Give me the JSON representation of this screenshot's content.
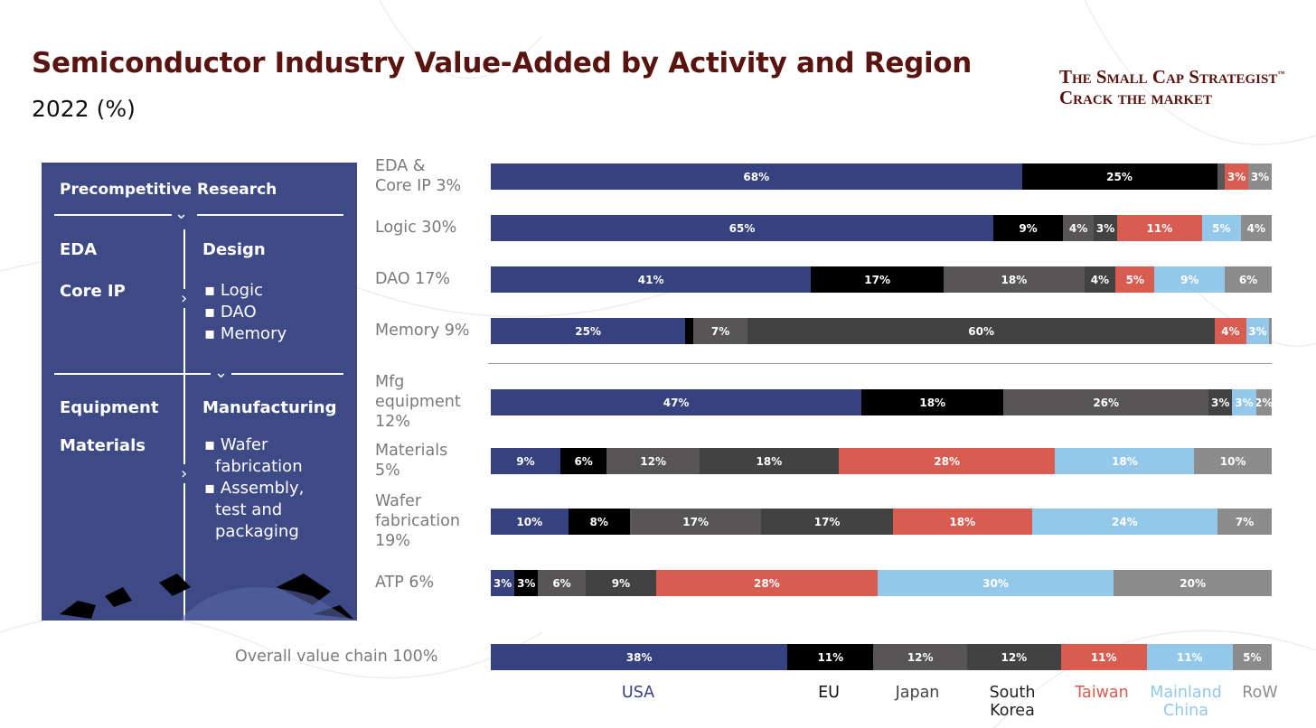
{
  "header": {
    "title": "Semiconductor Industry Value-Added by Activity and Region",
    "subtitle": "2022 (%)",
    "logo_line1": "The Small Cap Strategist",
    "logo_tm": "™",
    "logo_line2": "Crack the market"
  },
  "panel": {
    "heading": "Precompetitive Research",
    "eda": "EDA",
    "core_ip": "Core IP",
    "design": "Design",
    "design_items": [
      "▪ Logic",
      "▪ DAO",
      "▪ Memory"
    ],
    "equipment": "Equipment",
    "materials": "Materials",
    "manufacturing": "Manufacturing",
    "mfg_items": [
      "▪ Wafer",
      "fabrication",
      "▪ Assembly,",
      "test and",
      "packaging"
    ]
  },
  "colors": {
    "USA": "#36427f",
    "EU": "#000000",
    "Japan": "#575555",
    "South Korea": "#424242",
    "Taiwan": "#d95c50",
    "Mainland China": "#94c8ea",
    "RoW": "#8c8c8c"
  },
  "chart_data": {
    "type": "bar",
    "stacked": true,
    "orientation": "horizontal",
    "unit": "%",
    "title": "Semiconductor Industry Value-Added by Activity and Region",
    "subtitle": "2022 (%)",
    "series_names": [
      "USA",
      "EU",
      "Japan",
      "South Korea",
      "Taiwan",
      "Mainland China",
      "RoW"
    ],
    "legend": [
      {
        "name": "USA",
        "label": "USA"
      },
      {
        "name": "EU",
        "label": "EU"
      },
      {
        "name": "Japan",
        "label": "Japan"
      },
      {
        "name": "South Korea",
        "label": "South\nKorea"
      },
      {
        "name": "Taiwan",
        "label": "Taiwan"
      },
      {
        "name": "Mainland China",
        "label": "Mainland\nChina"
      },
      {
        "name": "RoW",
        "label": "RoW"
      }
    ],
    "legend_position": "bottom",
    "rows": [
      {
        "label": "EDA &\nCore IP 3%",
        "values": [
          68,
          25,
          1,
          0,
          3,
          0,
          3
        ],
        "labels": [
          "68%",
          "25%",
          "",
          "",
          "3%",
          "",
          "3%"
        ]
      },
      {
        "label": "Logic 30%",
        "values": [
          65,
          9,
          4,
          3,
          11,
          5,
          4
        ],
        "labels": [
          "65%",
          "9%",
          "4%",
          "3%",
          "11%",
          "5%",
          "4%"
        ]
      },
      {
        "label": "DAO 17%",
        "values": [
          41,
          17,
          18,
          4,
          5,
          9,
          6
        ],
        "labels": [
          "41%",
          "17%",
          "18%",
          "4%",
          "5%",
          "9%",
          "6%"
        ]
      },
      {
        "label": "Memory 9%",
        "values": [
          25,
          1,
          7,
          60,
          4,
          3,
          0.3
        ],
        "labels": [
          "25%",
          "",
          "7%",
          "60%",
          "4%",
          "3%",
          ""
        ]
      },
      {
        "label": "Mfg\nequipment\n12%",
        "values": [
          47,
          18,
          26,
          3,
          0,
          3,
          2
        ],
        "labels": [
          "47%",
          "18%",
          "26%",
          "3%",
          "",
          "3%",
          "2%"
        ]
      },
      {
        "label": "Materials\n5%",
        "values": [
          9,
          6,
          12,
          18,
          28,
          18,
          10
        ],
        "labels": [
          "9%",
          "6%",
          "12%",
          "18%",
          "28%",
          "18%",
          "10%"
        ]
      },
      {
        "label": "Wafer\nfabrication\n19%",
        "values": [
          10,
          8,
          17,
          17,
          18,
          24,
          7
        ],
        "labels": [
          "10%",
          "8%",
          "17%",
          "17%",
          "18%",
          "24%",
          "7%"
        ]
      },
      {
        "label": "ATP 6%",
        "values": [
          3,
          3,
          6,
          9,
          28,
          30,
          20
        ],
        "labels": [
          "3%",
          "3%",
          "6%",
          "9%",
          "28%",
          "30%",
          "20%"
        ]
      },
      {
        "label": "Overall value chain 100%",
        "values": [
          38,
          11,
          12,
          12,
          11,
          11,
          5
        ],
        "labels": [
          "38%",
          "11%",
          "12%",
          "12%",
          "11%",
          "11%",
          "5%"
        ]
      }
    ]
  }
}
